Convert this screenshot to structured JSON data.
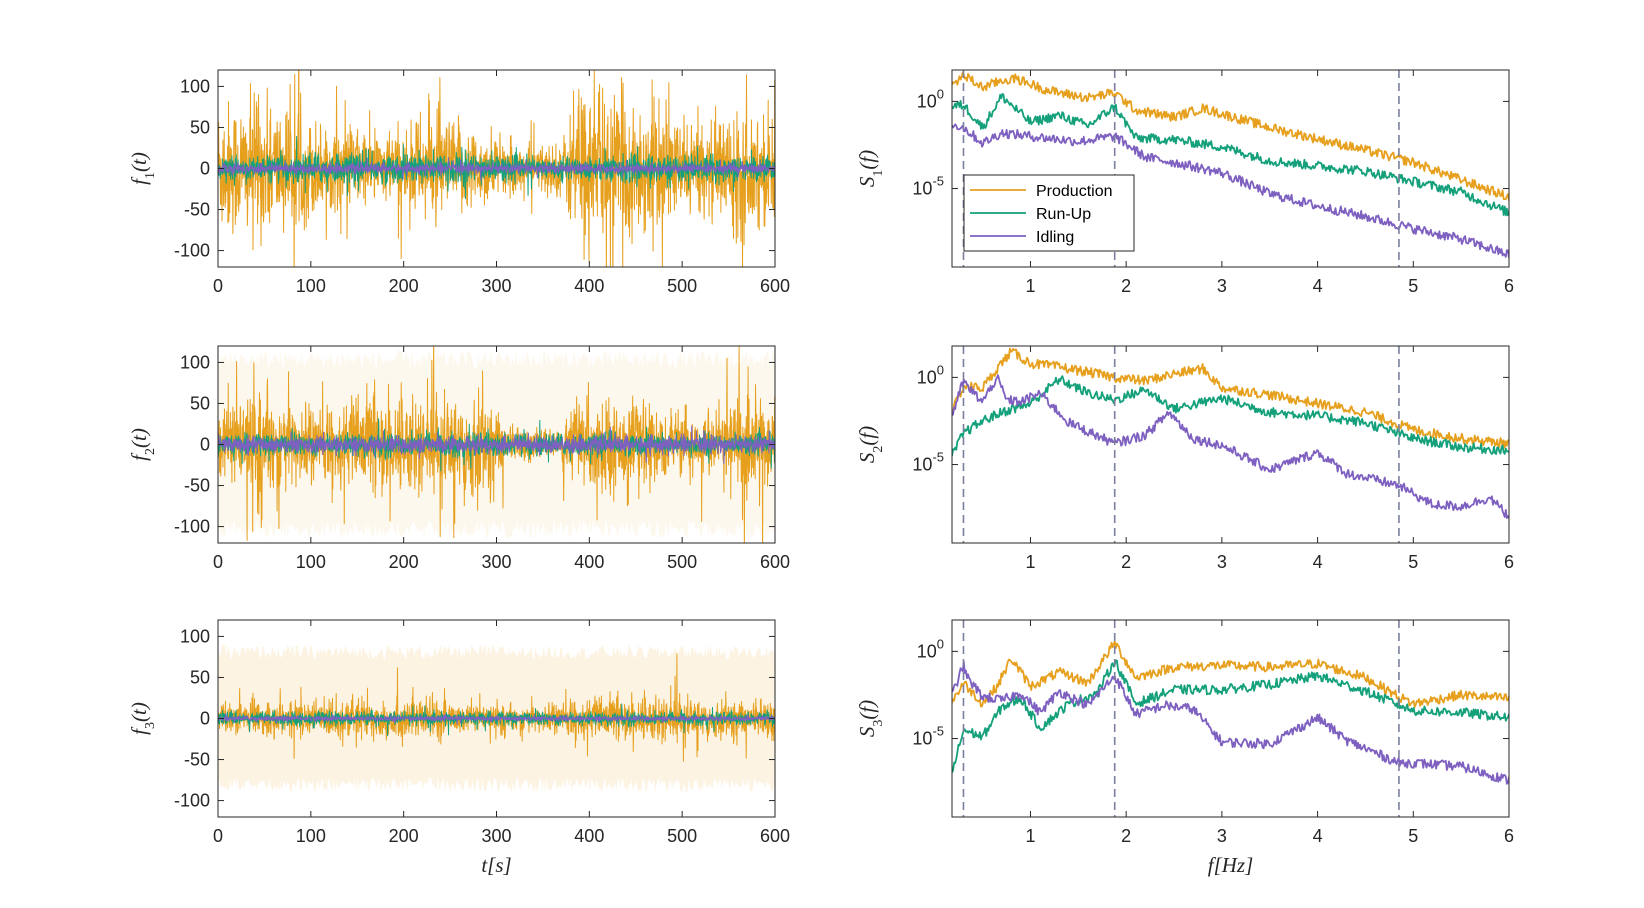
{
  "figure": {
    "colors": {
      "production": "#E6A01E",
      "runup": "#13A07A",
      "idling": "#7E60C0",
      "axis": "#262626",
      "dashed": "#7A7F9E"
    }
  },
  "chart_data": [
    {
      "type": "line",
      "panel": "time-1",
      "ylabel": "f_1(t)",
      "xlabel": "",
      "xlim": [
        0,
        600
      ],
      "ylim": [
        -120,
        120
      ],
      "xticks": [
        "0",
        "100",
        "200",
        "300",
        "400",
        "500",
        "600"
      ],
      "yticks": [
        "100",
        "50",
        "0",
        "-50",
        "-100"
      ],
      "x_values": [
        0,
        600
      ],
      "series": [
        {
          "key": "production",
          "amplitude_profile": [
            {
              "t": 0,
              "a": 90
            },
            {
              "t": 60,
              "a": 85
            },
            {
              "t": 120,
              "a": 55
            },
            {
              "t": 180,
              "a": 45
            },
            {
              "t": 230,
              "a": 70
            },
            {
              "t": 270,
              "a": 55
            },
            {
              "t": 320,
              "a": 30
            },
            {
              "t": 370,
              "a": 35
            },
            {
              "t": 390,
              "a": 105
            },
            {
              "t": 450,
              "a": 90
            },
            {
              "t": 520,
              "a": 50
            },
            {
              "t": 560,
              "a": 80
            },
            {
              "t": 600,
              "a": 70
            }
          ]
        },
        {
          "key": "runup",
          "amplitude_profile": [
            {
              "t": 0,
              "a": 12
            },
            {
              "t": 100,
              "a": 20
            },
            {
              "t": 200,
              "a": 18
            },
            {
              "t": 250,
              "a": 22
            },
            {
              "t": 350,
              "a": 12
            },
            {
              "t": 450,
              "a": 18
            },
            {
              "t": 600,
              "a": 15
            }
          ]
        },
        {
          "key": "idling",
          "amplitude_profile": [
            {
              "t": 0,
              "a": 6
            },
            {
              "t": 600,
              "a": 6
            }
          ]
        }
      ]
    },
    {
      "type": "line",
      "panel": "spectrum-1",
      "ylabel": "S_1(f)",
      "xlabel": "",
      "xlim": [
        0.18,
        6
      ],
      "yscale": "log",
      "ylim_log10": [
        -9.5,
        1.8
      ],
      "xticks": [
        "1",
        "2",
        "3",
        "4",
        "5",
        "6"
      ],
      "yticks": [
        "10^0",
        "10^-5"
      ],
      "vlines": [
        0.3,
        1.88,
        4.85
      ],
      "legend": {
        "placement": "middle-left",
        "entries": [
          "Production",
          "Run-Up",
          "Idling"
        ]
      },
      "series": [
        {
          "key": "production",
          "name": "Production",
          "x": [
            0.18,
            0.3,
            0.5,
            0.7,
            0.85,
            1.2,
            1.6,
            1.88,
            2.1,
            2.5,
            2.8,
            3.5,
            4.5,
            5.0,
            5.5,
            6.0
          ],
          "log10_y": [
            0.9,
            1.5,
            0.8,
            1.2,
            1.3,
            0.6,
            0.2,
            0.5,
            -0.5,
            -0.9,
            -0.4,
            -1.5,
            -2.8,
            -3.5,
            -4.5,
            -5.5
          ]
        },
        {
          "key": "runup",
          "name": "Run-Up",
          "x": [
            0.18,
            0.3,
            0.5,
            0.7,
            1.0,
            1.3,
            1.6,
            1.88,
            2.1,
            2.5,
            3.0,
            3.5,
            4.5,
            5.0,
            5.5,
            6.0
          ],
          "log10_y": [
            -0.3,
            -0.2,
            -1.5,
            0.3,
            -1.2,
            -0.8,
            -1.4,
            -0.3,
            -2.1,
            -2.2,
            -2.6,
            -3.4,
            -4.0,
            -4.6,
            -5.2,
            -6.4
          ]
        },
        {
          "key": "idling",
          "name": "Idling",
          "x": [
            0.18,
            0.3,
            0.5,
            0.7,
            1.0,
            1.5,
            1.88,
            2.2,
            2.5,
            3.0,
            3.5,
            4.0,
            4.5,
            5.0,
            5.5,
            6.0
          ],
          "log10_y": [
            -1.3,
            -1.5,
            -2.4,
            -1.8,
            -2.0,
            -2.3,
            -2.0,
            -3.2,
            -3.5,
            -4.1,
            -5.3,
            -6.0,
            -6.6,
            -7.3,
            -7.9,
            -8.8
          ]
        }
      ]
    },
    {
      "type": "line",
      "panel": "time-2",
      "ylabel": "f_2(t)",
      "xlabel": "",
      "xlim": [
        0,
        600
      ],
      "ylim": [
        -120,
        120
      ],
      "xticks": [
        "0",
        "100",
        "200",
        "300",
        "400",
        "500",
        "600"
      ],
      "yticks": [
        "100",
        "50",
        "0",
        "-50",
        "-100"
      ],
      "x_values": [
        0,
        600
      ],
      "background_band": {
        "key": "production",
        "amplitude": 115,
        "opacity": 0.08
      },
      "series": [
        {
          "key": "production",
          "amplitude_profile": [
            {
              "t": 0,
              "a": 50
            },
            {
              "t": 60,
              "a": 65
            },
            {
              "t": 120,
              "a": 45
            },
            {
              "t": 180,
              "a": 70
            },
            {
              "t": 230,
              "a": 55
            },
            {
              "t": 280,
              "a": 75
            },
            {
              "t": 320,
              "a": 20
            },
            {
              "t": 360,
              "a": 15
            },
            {
              "t": 390,
              "a": 60
            },
            {
              "t": 450,
              "a": 50
            },
            {
              "t": 520,
              "a": 35
            },
            {
              "t": 570,
              "a": 70
            },
            {
              "t": 600,
              "a": 55
            }
          ]
        },
        {
          "key": "runup",
          "amplitude_profile": [
            {
              "t": 0,
              "a": 12
            },
            {
              "t": 250,
              "a": 15
            },
            {
              "t": 600,
              "a": 12
            }
          ]
        },
        {
          "key": "idling",
          "amplitude_profile": [
            {
              "t": 0,
              "a": 10
            },
            {
              "t": 600,
              "a": 10
            }
          ]
        }
      ]
    },
    {
      "type": "line",
      "panel": "spectrum-2",
      "ylabel": "S_2(f)",
      "xlabel": "",
      "xlim": [
        0.18,
        6
      ],
      "yscale": "log",
      "ylim_log10": [
        -9.5,
        1.8
      ],
      "xticks": [
        "1",
        "2",
        "3",
        "4",
        "5",
        "6"
      ],
      "yticks": [
        "10^0",
        "10^-5"
      ],
      "vlines": [
        0.3,
        1.88,
        4.85
      ],
      "series": [
        {
          "key": "production",
          "name": "Production",
          "x": [
            0.18,
            0.3,
            0.5,
            0.65,
            0.8,
            1.0,
            1.3,
            1.6,
            1.88,
            2.2,
            2.5,
            2.8,
            3.0,
            3.5,
            4.0,
            4.5,
            5.0,
            5.5,
            6.0
          ],
          "log10_y": [
            -2.0,
            -0.5,
            -0.6,
            0.5,
            1.5,
            0.8,
            0.6,
            0.3,
            0.0,
            -0.2,
            0.2,
            0.5,
            -0.6,
            -1.0,
            -1.5,
            -2.0,
            -3.0,
            -3.5,
            -3.8
          ]
        },
        {
          "key": "runup",
          "name": "Run-Up",
          "x": [
            0.18,
            0.3,
            0.5,
            0.7,
            1.0,
            1.3,
            1.6,
            1.88,
            2.2,
            2.5,
            3.0,
            3.5,
            4.0,
            4.5,
            5.0,
            5.5,
            6.0
          ],
          "log10_y": [
            -4.5,
            -3.2,
            -2.5,
            -2.0,
            -1.5,
            -0.1,
            -0.9,
            -1.3,
            -0.7,
            -1.8,
            -1.2,
            -2.0,
            -2.2,
            -2.6,
            -3.5,
            -4.0,
            -4.2
          ]
        },
        {
          "key": "idling",
          "name": "Idling",
          "x": [
            0.18,
            0.3,
            0.35,
            0.5,
            0.65,
            0.75,
            0.9,
            1.1,
            1.4,
            1.88,
            2.2,
            2.45,
            2.7,
            3.0,
            3.5,
            4.0,
            4.3,
            4.85,
            5.2,
            5.5,
            5.8,
            6.0
          ],
          "log10_y": [
            -2.2,
            -0.2,
            -0.6,
            -1.4,
            0.0,
            -1.3,
            -1.4,
            -0.9,
            -2.6,
            -3.8,
            -3.3,
            -2.0,
            -3.5,
            -3.9,
            -5.3,
            -4.3,
            -5.5,
            -6.2,
            -7.3,
            -7.4,
            -6.9,
            -8.0
          ]
        }
      ]
    },
    {
      "type": "line",
      "panel": "time-3",
      "ylabel": "f_3(t)",
      "xlabel": "t[s]",
      "xlim": [
        0,
        600
      ],
      "ylim": [
        -120,
        120
      ],
      "xticks": [
        "0",
        "100",
        "200",
        "300",
        "400",
        "500",
        "600"
      ],
      "yticks": [
        "100",
        "50",
        "0",
        "-50",
        "-100"
      ],
      "x_values": [
        0,
        600
      ],
      "background_band": {
        "key": "production",
        "amplitude": 90,
        "opacity": 0.13
      },
      "series": [
        {
          "key": "production",
          "amplitude_profile": [
            {
              "t": 0,
              "a": 18
            },
            {
              "t": 200,
              "a": 28
            },
            {
              "t": 300,
              "a": 14
            },
            {
              "t": 450,
              "a": 30
            },
            {
              "t": 600,
              "a": 22
            }
          ]
        },
        {
          "key": "runup",
          "amplitude_profile": [
            {
              "t": 0,
              "a": 8
            },
            {
              "t": 600,
              "a": 8
            }
          ]
        },
        {
          "key": "idling",
          "amplitude_profile": [
            {
              "t": 0,
              "a": 3
            },
            {
              "t": 600,
              "a": 3
            }
          ]
        }
      ]
    },
    {
      "type": "line",
      "panel": "spectrum-3",
      "ylabel": "S_3(f)",
      "xlabel": "f[Hz]",
      "xlim": [
        0.18,
        6
      ],
      "yscale": "log",
      "ylim_log10": [
        -9.5,
        1.8
      ],
      "xticks": [
        "1",
        "2",
        "3",
        "4",
        "5",
        "6"
      ],
      "yticks": [
        "10^0",
        "10^-5"
      ],
      "vlines": [
        0.3,
        1.88,
        4.85
      ],
      "series": [
        {
          "key": "production",
          "name": "Production",
          "x": [
            0.18,
            0.3,
            0.5,
            0.65,
            0.8,
            1.0,
            1.3,
            1.6,
            1.88,
            2.1,
            2.5,
            3.0,
            3.5,
            4.0,
            4.5,
            4.85,
            5.0,
            5.5,
            6.0
          ],
          "log10_y": [
            -2.9,
            -1.8,
            -3.0,
            -2.0,
            -0.4,
            -2.0,
            -1.2,
            -1.8,
            0.5,
            -1.5,
            -0.9,
            -0.8,
            -0.9,
            -0.7,
            -1.5,
            -2.6,
            -3.0,
            -2.5,
            -2.7
          ]
        },
        {
          "key": "runup",
          "name": "Run-Up",
          "x": [
            0.18,
            0.3,
            0.5,
            0.7,
            0.9,
            1.1,
            1.4,
            1.7,
            1.88,
            2.1,
            2.5,
            3.0,
            3.5,
            4.0,
            4.5,
            5.0,
            5.5,
            6.0
          ],
          "log10_y": [
            -7.0,
            -4.5,
            -4.9,
            -3.2,
            -2.7,
            -4.4,
            -3.0,
            -2.4,
            -0.5,
            -3.0,
            -2.2,
            -2.2,
            -1.9,
            -1.4,
            -2.3,
            -3.4,
            -3.5,
            -3.8
          ]
        },
        {
          "key": "idling",
          "name": "Idling",
          "x": [
            0.18,
            0.3,
            0.35,
            0.5,
            0.7,
            0.9,
            1.1,
            1.3,
            1.6,
            1.88,
            2.1,
            2.4,
            2.7,
            3.0,
            3.5,
            4.0,
            4.3,
            4.85,
            5.0,
            5.5,
            6.0
          ],
          "log10_y": [
            -2.5,
            -0.8,
            -1.6,
            -2.6,
            -2.8,
            -2.4,
            -3.5,
            -2.3,
            -3.1,
            -1.4,
            -3.6,
            -3.1,
            -3.3,
            -5.2,
            -5.3,
            -3.8,
            -5.1,
            -6.4,
            -6.4,
            -6.6,
            -7.4
          ]
        }
      ]
    }
  ]
}
